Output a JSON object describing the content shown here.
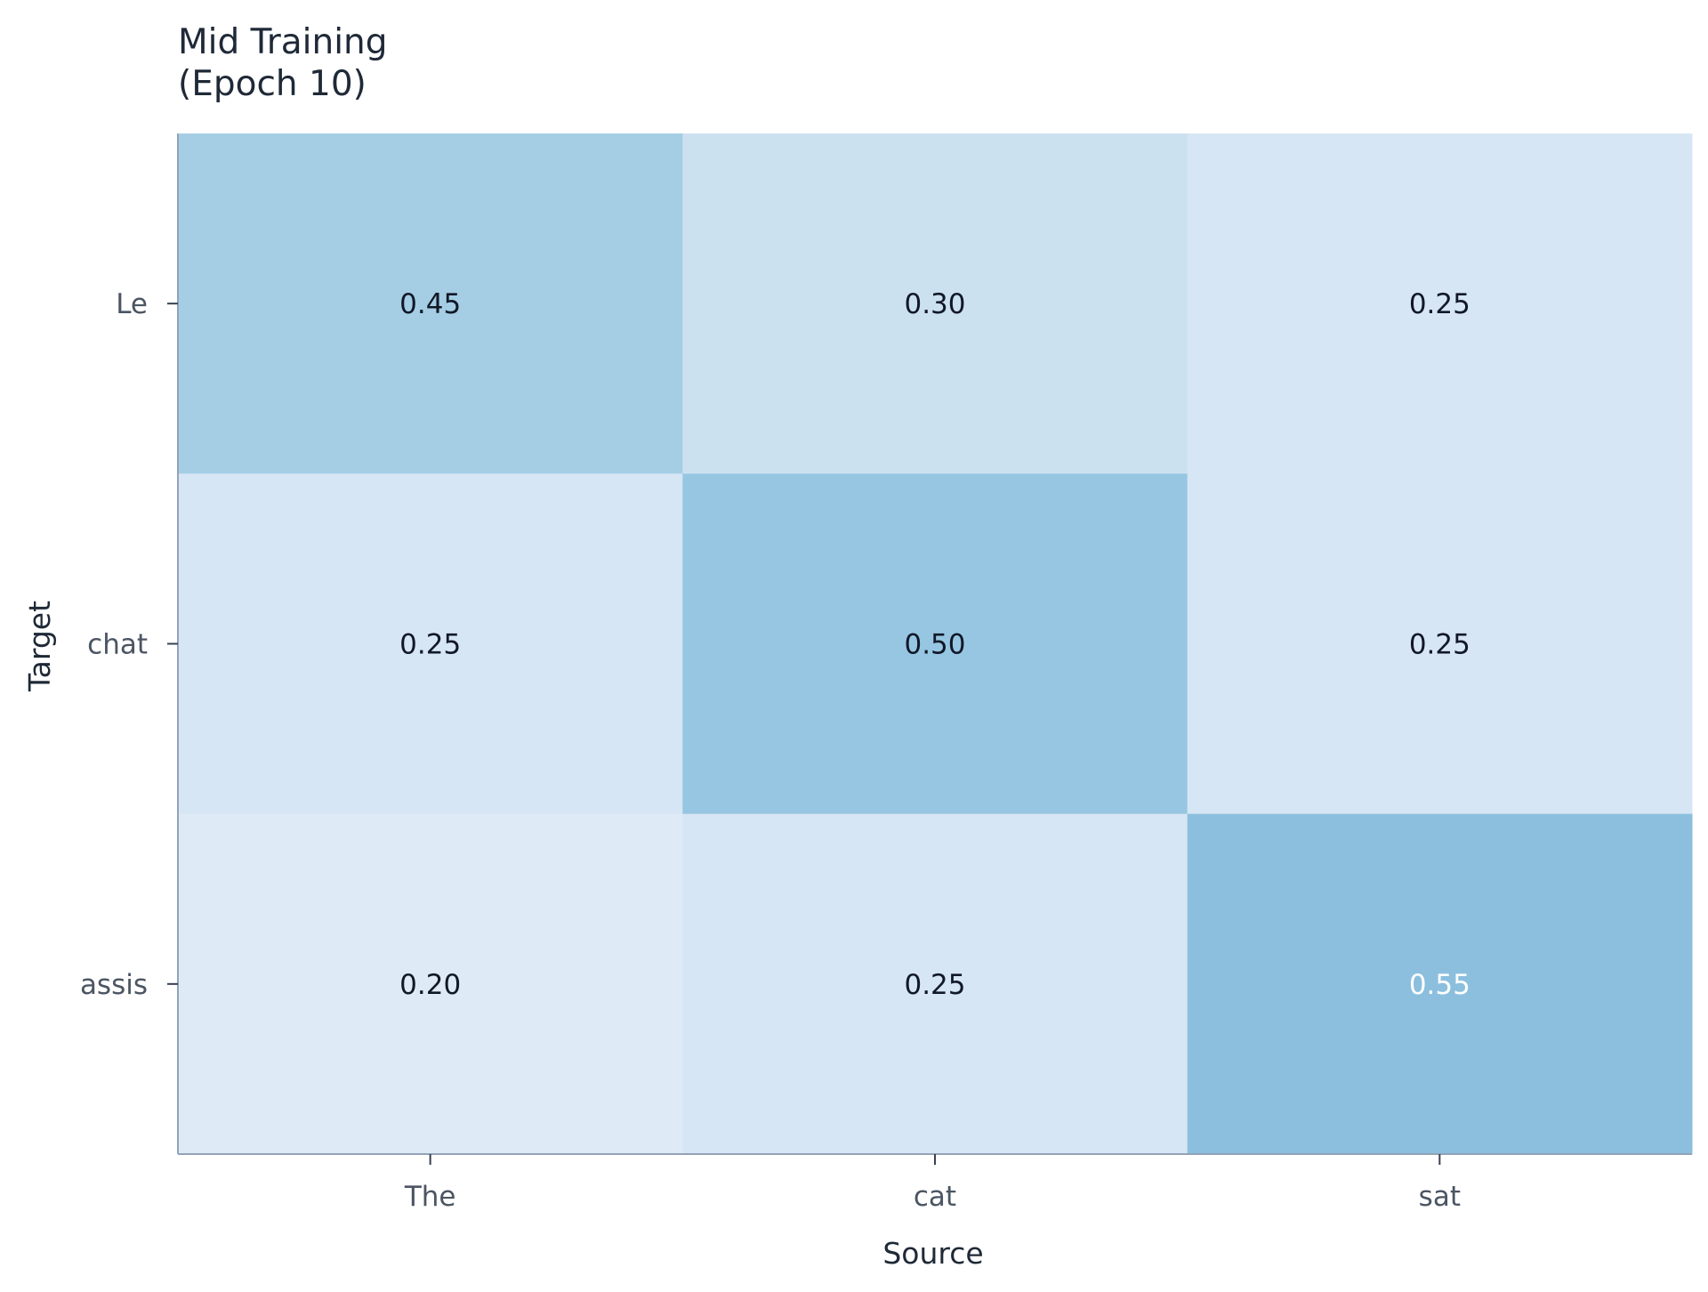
{
  "chart_data": {
    "type": "heatmap",
    "title_lines": [
      "Mid Training",
      "(Epoch 10)"
    ],
    "xlabel": "Source",
    "ylabel": "Target",
    "x_categories": [
      "The",
      "cat",
      "sat"
    ],
    "y_categories": [
      "Le",
      "chat",
      "assis"
    ],
    "values": [
      [
        0.45,
        0.3,
        0.25
      ],
      [
        0.25,
        0.5,
        0.25
      ],
      [
        0.2,
        0.25,
        0.55
      ]
    ],
    "value_labels": [
      [
        "0.45",
        "0.30",
        "0.25"
      ],
      [
        "0.25",
        "0.50",
        "0.25"
      ],
      [
        "0.20",
        "0.25",
        "0.55"
      ]
    ],
    "colormap": "Blues",
    "value_range": [
      0,
      1
    ],
    "grid": false
  }
}
